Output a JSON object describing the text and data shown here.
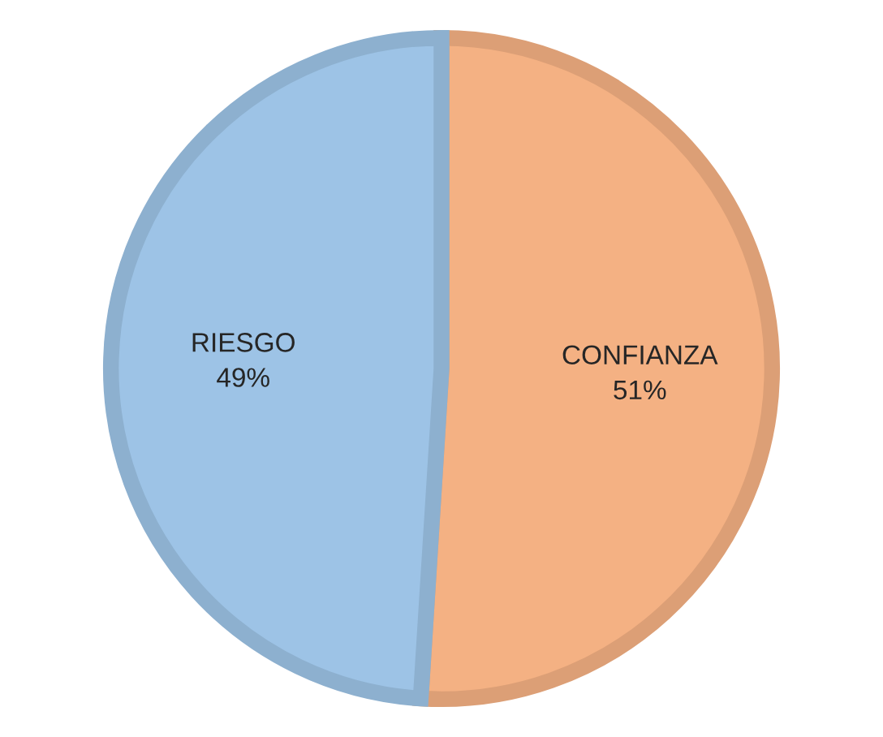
{
  "chart_data": {
    "type": "pie",
    "categories": [
      "CONFIANZA",
      "RIESGO"
    ],
    "values": [
      51,
      49
    ],
    "colors": [
      "#f4b183",
      "#9dc3e6"
    ],
    "value_labels": [
      "51%",
      "49%"
    ],
    "legend": false
  }
}
